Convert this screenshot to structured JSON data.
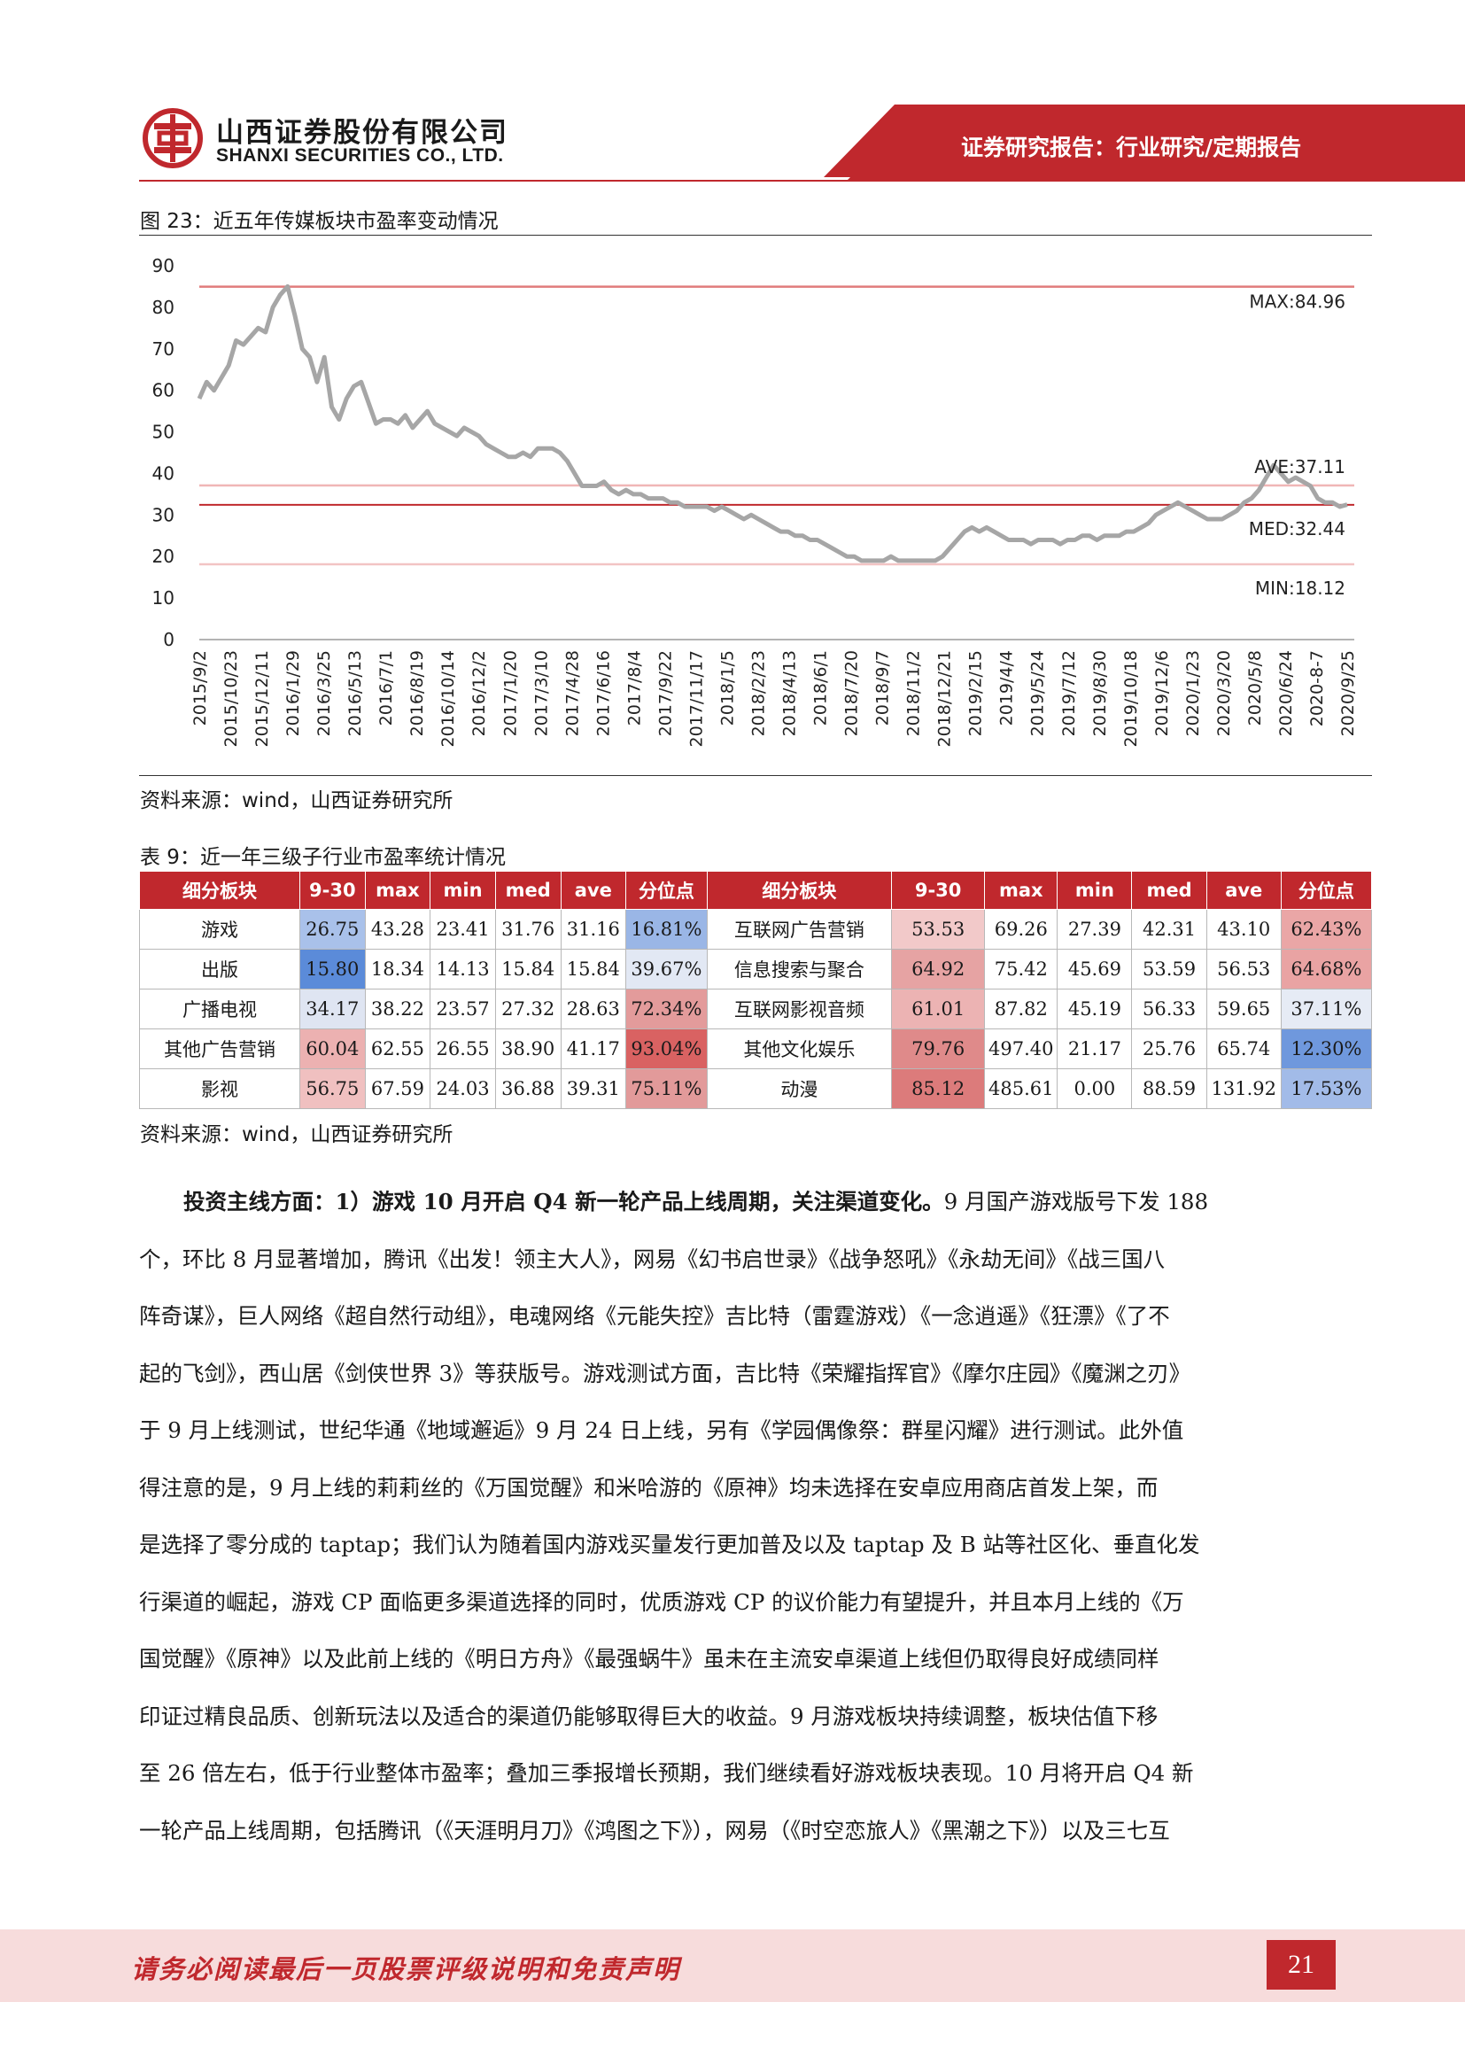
{
  "header": {
    "company_cn": "山西证券股份有限公司",
    "company_en": "SHANXI SECURITIES CO., LTD.",
    "report_type": "证券研究报告：行业研究/定期报告",
    "brand_color": "#c0282d"
  },
  "figure": {
    "caption": "图 23：近五年传媒板块市盈率变动情况",
    "source": "资料来源：wind，山西证券研究所"
  },
  "chart_data": {
    "type": "line",
    "y_ticks": [
      "0",
      "10",
      "20",
      "30",
      "40",
      "50",
      "60",
      "70",
      "80",
      "90"
    ],
    "ylim": [
      0,
      90
    ],
    "x_ticks": [
      "2015/9/2",
      "2015/10/23",
      "2015/12/11",
      "2016/1/29",
      "2016/3/25",
      "2016/5/13",
      "2016/7/1",
      "2016/8/19",
      "2016/10/14",
      "2016/12/2",
      "2017/1/20",
      "2017/3/10",
      "2017/4/28",
      "2017/6/16",
      "2017/8/4",
      "2017/9/22",
      "2017/11/17",
      "2018/1/5",
      "2018/2/23",
      "2018/4/13",
      "2018/6/1",
      "2018/7/20",
      "2018/9/7",
      "2018/11/2",
      "2018/12/21",
      "2019/2/15",
      "2019/4/4",
      "2019/5/24",
      "2019/7/12",
      "2019/8/30",
      "2019/10/18",
      "2019/12/6",
      "2020/1/23",
      "2020/3/20",
      "2020/5/8",
      "2020/6/24",
      "2020-8-7",
      "2020/9/25"
    ],
    "reference_lines": [
      {
        "label": "MAX:84.96",
        "value": 84.96
      },
      {
        "label": "AVE:37.11",
        "value": 37.11
      },
      {
        "label": "MED:32.44",
        "value": 32.44
      },
      {
        "label": "MIN:18.12",
        "value": 18.12
      }
    ],
    "series": [
      {
        "color": "#a6a6a6",
        "values": [
          58,
          62,
          60,
          63,
          66,
          72,
          71,
          73,
          75,
          74,
          80,
          83,
          85,
          78,
          70,
          68,
          62,
          68,
          56,
          53,
          58,
          61,
          62,
          57,
          52,
          53,
          53,
          52,
          54,
          51,
          53,
          55,
          52,
          51,
          50,
          49,
          51,
          50,
          49,
          47,
          46,
          45,
          44,
          44,
          45,
          44,
          46,
          46,
          46,
          45,
          43,
          40,
          37,
          37,
          37,
          38,
          36,
          35,
          36,
          35,
          35,
          34,
          34,
          34,
          33,
          33,
          32,
          32,
          32,
          32,
          31,
          32,
          31,
          30,
          29,
          30,
          29,
          28,
          27,
          26,
          26,
          25,
          25,
          24,
          24,
          23,
          22,
          21,
          20,
          20,
          19,
          19,
          19,
          19,
          20,
          19,
          19,
          19,
          19,
          19,
          19,
          20,
          22,
          24,
          26,
          27,
          26,
          27,
          26,
          25,
          24,
          24,
          24,
          23,
          24,
          24,
          24,
          23,
          24,
          24,
          25,
          25,
          24,
          25,
          25,
          25,
          26,
          26,
          27,
          28,
          30,
          31,
          32,
          33,
          32,
          31,
          30,
          29,
          29,
          29,
          30,
          31,
          33,
          34,
          36,
          39,
          42,
          40,
          38,
          39,
          38,
          37,
          34,
          33,
          33,
          32,
          32.5
        ]
      }
    ]
  },
  "table": {
    "caption": "表 9：近一年三级子行业市盈率统计情况",
    "source": "资料来源：wind，山西证券研究所",
    "headers": [
      "细分板块",
      "9-30",
      "max",
      "min",
      "med",
      "ave",
      "分位点",
      "细分板块",
      "9-30",
      "max",
      "min",
      "med",
      "ave",
      "分位点"
    ],
    "rows": [
      {
        "left": [
          "游戏",
          "26.75",
          "43.28",
          "23.41",
          "31.76",
          "31.16",
          "16.81%"
        ],
        "right": [
          "互联网广告营销",
          "53.53",
          "69.26",
          "27.39",
          "42.31",
          "43.10",
          "62.43%"
        ],
        "lc": [
          "#a9c1ea",
          "#9ab6e6"
        ],
        "rc": [
          "#f2c9c9",
          "#eaa6a6"
        ]
      },
      {
        "left": [
          "出版",
          "15.80",
          "18.34",
          "14.13",
          "15.84",
          "15.84",
          "39.67%"
        ],
        "right": [
          "信息搜索与聚合",
          "64.92",
          "75.42",
          "45.69",
          "53.59",
          "56.53",
          "64.68%"
        ],
        "lc": [
          "#5b8bd9",
          "#e2e8f4"
        ],
        "rc": [
          "#e6a3a3",
          "#e9a3a3"
        ]
      },
      {
        "left": [
          "广播电视",
          "34.17",
          "38.22",
          "23.57",
          "27.32",
          "28.63",
          "72.34%"
        ],
        "right": [
          "互联网影视音频",
          "61.01",
          "87.82",
          "45.19",
          "56.33",
          "59.65",
          "37.11%"
        ],
        "lc": [
          "#dfe5f2",
          "#e39b9b"
        ],
        "rc": [
          "#ecb3b3",
          "#e6ebf5"
        ]
      },
      {
        "left": [
          "其他广告营销",
          "60.04",
          "62.55",
          "26.55",
          "38.90",
          "41.17",
          "93.04%"
        ],
        "right": [
          "其他文化娱乐",
          "79.76",
          "497.40",
          "21.17",
          "25.76",
          "65.74",
          "12.30%"
        ],
        "lc": [
          "#ecb1b1",
          "#d96262"
        ],
        "rc": [
          "#df8a8a",
          "#6f98dd"
        ]
      },
      {
        "left": [
          "影视",
          "56.75",
          "67.59",
          "24.03",
          "36.88",
          "39.31",
          "75.11%"
        ],
        "right": [
          "动漫",
          "85.12",
          "485.61",
          "0.00",
          "88.59",
          "131.92",
          "17.53%"
        ],
        "lc": [
          "#f0c0c0",
          "#e29a9a"
        ],
        "rc": [
          "#dc7b7b",
          "#a2bbe8"
        ]
      }
    ]
  },
  "body": {
    "lead_bold": "投资主线方面：1）游戏 10 月开启 Q4 新一轮产品上线周期，关注渠道变化。",
    "lines": [
      "9 月国产游戏版号下发 188",
      "个，环比 8 月显著增加，腾讯《出发！领主大人》，网易《幻书启世录》《战争怒吼》《永劫无间》《战三国八",
      "阵奇谋》，巨人网络《超自然行动组》，电魂网络《元能失控》吉比特（雷霆游戏）《一念逍遥》《狂漂》《了不",
      "起的飞剑》，西山居《剑侠世界 3》等获版号。游戏测试方面，吉比特《荣耀指挥官》《摩尔庄园》《魔渊之刃》",
      "于 9 月上线测试，世纪华通《地域邂逅》9 月 24 日上线，另有《学园偶像祭：群星闪耀》进行测试。此外值",
      "得注意的是，9 月上线的莉莉丝的《万国觉醒》和米哈游的《原神》均未选择在安卓应用商店首发上架，而",
      "是选择了零分成的 taptap；我们认为随着国内游戏买量发行更加普及以及 taptap 及 B 站等社区化、垂直化发",
      "行渠道的崛起，游戏 CP 面临更多渠道选择的同时，优质游戏 CP 的议价能力有望提升，并且本月上线的《万",
      "国觉醒》《原神》以及此前上线的《明日方舟》《最强蜗牛》虽未在主流安卓渠道上线但仍取得良好成绩同样",
      "印证过精良品质、创新玩法以及适合的渠道仍能够取得巨大的收益。9 月游戏板块持续调整，板块估值下移",
      "至 26 倍左右，低于行业整体市盈率；叠加三季报增长预期，我们继续看好游戏板块表现。10 月将开启 Q4 新",
      "一轮产品上线周期，包括腾讯（《天涯明月刀》《鸿图之下》），网易（《时空恋旅人》《黑潮之下》）以及三七互"
    ]
  },
  "footer": {
    "disclaimer": "请务必阅读最后一页股票评级说明和免责声明",
    "page_number": "21"
  }
}
